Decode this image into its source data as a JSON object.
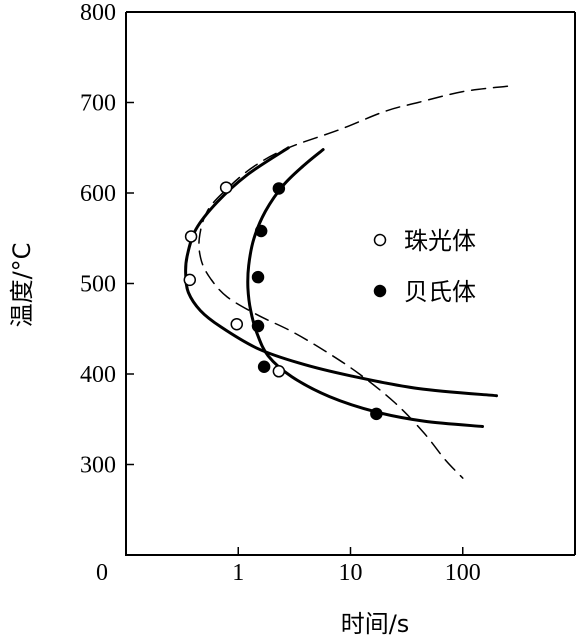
{
  "chart_data": {
    "type": "scatter",
    "xlabel": "时间/s",
    "ylabel": "温度/°C",
    "x_scale": "log",
    "xlim": [
      0.1,
      1000
    ],
    "ylim": [
      200,
      800
    ],
    "x_ticks": [
      {
        "value": 0.1,
        "label": "0"
      },
      {
        "value": 1,
        "label": "1"
      },
      {
        "value": 10,
        "label": "10"
      },
      {
        "value": 100,
        "label": "100"
      }
    ],
    "y_ticks": [
      {
        "value": 800,
        "label": "800"
      },
      {
        "value": 700,
        "label": "700"
      },
      {
        "value": 600,
        "label": "600"
      },
      {
        "value": 500,
        "label": "500"
      },
      {
        "value": 400,
        "label": "400"
      },
      {
        "value": 300,
        "label": "300"
      }
    ],
    "legend": {
      "position": "right"
    },
    "series": [
      {
        "name": "珠光体",
        "marker": "open-circle",
        "points": [
          [
            0.78,
            606
          ],
          [
            0.38,
            552
          ],
          [
            0.37,
            504
          ],
          [
            0.97,
            455
          ],
          [
            2.3,
            403
          ]
        ],
        "curve": [
          [
            2.8,
            650
          ],
          [
            1.2,
            620
          ],
          [
            0.65,
            590
          ],
          [
            0.42,
            560
          ],
          [
            0.35,
            530
          ],
          [
            0.34,
            510
          ],
          [
            0.36,
            490
          ],
          [
            0.46,
            470
          ],
          [
            0.7,
            452
          ],
          [
            1.5,
            428
          ],
          [
            3.5,
            412
          ],
          [
            10,
            398
          ],
          [
            40,
            384
          ],
          [
            200,
            376
          ]
        ]
      },
      {
        "name": "贝氏体",
        "marker": "filled-circle",
        "points": [
          [
            2.3,
            605
          ],
          [
            1.6,
            558
          ],
          [
            1.5,
            507
          ],
          [
            1.5,
            453
          ],
          [
            1.7,
            408
          ],
          [
            17,
            356
          ]
        ],
        "curve": [
          [
            5.7,
            648
          ],
          [
            3.8,
            630
          ],
          [
            2.5,
            608
          ],
          [
            1.75,
            580
          ],
          [
            1.38,
            550
          ],
          [
            1.24,
            520
          ],
          [
            1.22,
            495
          ],
          [
            1.29,
            470
          ],
          [
            1.47,
            445
          ],
          [
            1.85,
            420
          ],
          [
            3,
            397
          ],
          [
            6.5,
            375
          ],
          [
            17,
            358
          ],
          [
            45,
            348
          ],
          [
            150,
            342
          ]
        ]
      },
      {
        "name": "",
        "line_style": "dashed",
        "curve": [
          [
            250,
            718
          ],
          [
            100,
            712
          ],
          [
            40,
            700
          ],
          [
            20,
            690
          ],
          [
            8,
            670
          ],
          [
            2.8,
            650
          ],
          [
            1.4,
            630
          ],
          [
            0.8,
            605
          ],
          [
            0.53,
            580
          ],
          [
            0.45,
            550
          ],
          [
            0.47,
            525
          ],
          [
            0.57,
            505
          ],
          [
            0.8,
            485
          ],
          [
            1.5,
            465
          ],
          [
            3,
            447
          ],
          [
            6,
            425
          ],
          [
            12,
            400
          ],
          [
            25,
            368
          ],
          [
            45,
            335
          ],
          [
            70,
            305
          ],
          [
            100,
            285
          ]
        ]
      }
    ],
    "legend_entries": [
      {
        "label": "珠光体",
        "marker": "open-circle"
      },
      {
        "label": "贝氏体",
        "marker": "filled-circle"
      }
    ]
  }
}
